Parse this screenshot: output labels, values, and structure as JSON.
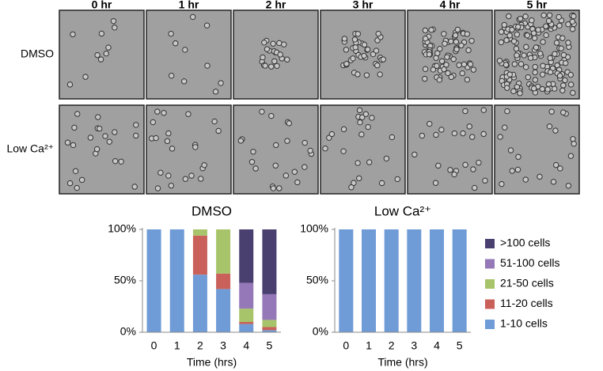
{
  "panels": {
    "columns": [
      "0 hr",
      "1 hr",
      "2 hr",
      "3 hr",
      "4 hr",
      "5 hr"
    ],
    "rows": [
      "DMSO",
      "Low Ca²⁺"
    ]
  },
  "chart_data": [
    {
      "type": "stacked-bar",
      "title": "DMSO",
      "xlabel": "Time (hrs)",
      "categories": [
        "0",
        "1",
        "2",
        "3",
        "4",
        "5"
      ],
      "series": [
        {
          "name": "1-10 cells",
          "color": "#6f9bd6",
          "values": [
            100,
            100,
            56,
            42,
            8,
            2
          ]
        },
        {
          "name": "11-20 cells",
          "color": "#c9615a",
          "values": [
            0,
            0,
            38,
            15,
            2,
            3
          ]
        },
        {
          "name": "21-50 cells",
          "color": "#a8c46a",
          "values": [
            0,
            0,
            6,
            43,
            13,
            7
          ]
        },
        {
          "name": "51-100 cells",
          "color": "#9478b8",
          "values": [
            0,
            0,
            0,
            0,
            25,
            25
          ]
        },
        {
          "name": ">100 cells",
          "color": "#4a4070",
          "values": [
            0,
            0,
            0,
            0,
            52,
            63
          ]
        }
      ],
      "ylim": [
        0,
        100
      ],
      "yticks": [
        {
          "value": 0,
          "label": "0%"
        },
        {
          "value": 50,
          "label": "50%"
        },
        {
          "value": 100,
          "label": "100%"
        }
      ]
    },
    {
      "type": "stacked-bar",
      "title": "Low Ca²⁺",
      "xlabel": "Time (hrs)",
      "categories": [
        "0",
        "1",
        "2",
        "3",
        "4",
        "5"
      ],
      "series": [
        {
          "name": "1-10 cells",
          "color": "#6f9bd6",
          "values": [
            100,
            100,
            100,
            100,
            100,
            100
          ]
        },
        {
          "name": "11-20 cells",
          "color": "#c9615a",
          "values": [
            0,
            0,
            0,
            0,
            0,
            0
          ]
        },
        {
          "name": "21-50 cells",
          "color": "#a8c46a",
          "values": [
            0,
            0,
            0,
            0,
            0,
            0
          ]
        },
        {
          "name": "51-100 cells",
          "color": "#9478b8",
          "values": [
            0,
            0,
            0,
            0,
            0,
            0
          ]
        },
        {
          "name": ">100 cells",
          "color": "#4a4070",
          "values": [
            0,
            0,
            0,
            0,
            0,
            0
          ]
        }
      ],
      "ylim": [
        0,
        100
      ],
      "yticks": [
        {
          "value": 0,
          "label": "0%"
        },
        {
          "value": 50,
          "label": "50%"
        },
        {
          "value": 100,
          "label": "100%"
        }
      ],
      "legend": "right"
    }
  ]
}
